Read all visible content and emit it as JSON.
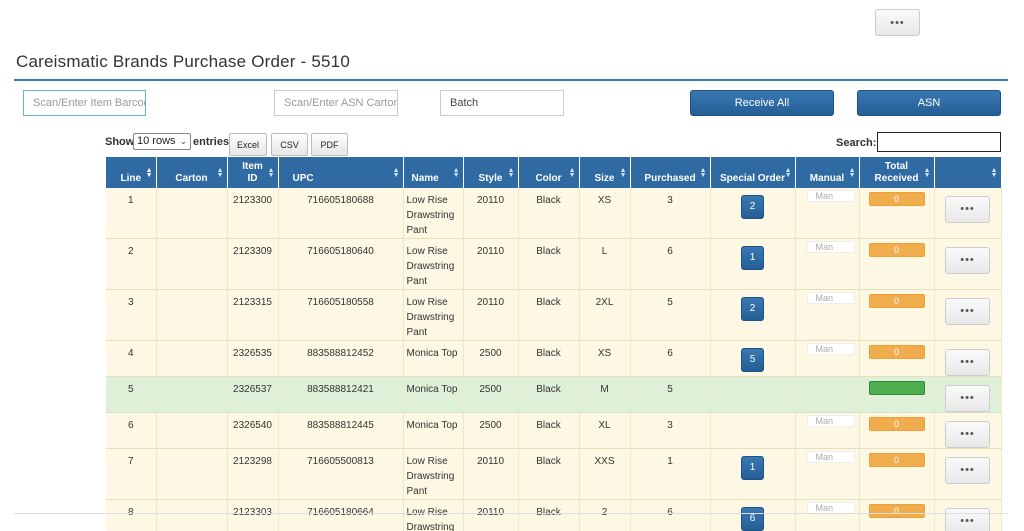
{
  "header": {
    "more_label": "•••"
  },
  "page_title": "Careismatic Brands Purchase Order - 5510",
  "inputs": {
    "item_barcode_placeholder": "Scan/Enter Item Barcode",
    "asn_carton_placeholder": "Scan/Enter ASN Carton",
    "batch_value": "Batch"
  },
  "actions": {
    "receive_all": "Receive All",
    "asn": "ASN"
  },
  "table_controls": {
    "show": "Show",
    "rows_selected": "10 rows",
    "entries": "entries",
    "export_buttons": [
      "Excel",
      "CSV",
      "PDF"
    ],
    "search_label": "Search:",
    "search_value": ""
  },
  "columns": [
    "Line",
    "Carton",
    "Item ID",
    "UPC",
    "Name",
    "Style",
    "Color",
    "Size",
    "Purchased",
    "Special Order",
    "Manual",
    "Total Received",
    ""
  ],
  "sorted_column": "Line",
  "rows": [
    {
      "line": "1",
      "carton": "",
      "item_id": "2123300",
      "upc": "716605180688",
      "name": "Low Rise Drawstring Pant",
      "style": "20110",
      "color": "Black",
      "size": "XS",
      "purchased": "3",
      "special_order": "2",
      "manual": "Man",
      "total_received": "0",
      "received": false,
      "more": "•••"
    },
    {
      "line": "2",
      "carton": "",
      "item_id": "2123309",
      "upc": "716605180640",
      "name": "Low Rise Drawstring Pant",
      "style": "20110",
      "color": "Black",
      "size": "L",
      "purchased": "6",
      "special_order": "1",
      "manual": "Man",
      "total_received": "0",
      "received": false,
      "more": "•••"
    },
    {
      "line": "3",
      "carton": "",
      "item_id": "2123315",
      "upc": "716605180558",
      "name": "Low Rise Drawstring Pant",
      "style": "20110",
      "color": "Black",
      "size": "2XL",
      "purchased": "5",
      "special_order": "2",
      "manual": "Man",
      "total_received": "0",
      "received": false,
      "more": "•••"
    },
    {
      "line": "4",
      "carton": "",
      "item_id": "2326535",
      "upc": "883588812452",
      "name": "Monica Top",
      "style": "2500",
      "color": "Black",
      "size": "XS",
      "purchased": "6",
      "special_order": "5",
      "manual": "Man",
      "total_received": "0",
      "received": false,
      "more": "•••"
    },
    {
      "line": "5",
      "carton": "",
      "item_id": "2326537",
      "upc": "883588812421",
      "name": "Monica Top",
      "style": "2500",
      "color": "Black",
      "size": "M",
      "purchased": "5",
      "special_order": "",
      "manual": "",
      "total_received": "",
      "received": true,
      "more": "•••"
    },
    {
      "line": "6",
      "carton": "",
      "item_id": "2326540",
      "upc": "883588812445",
      "name": "Monica Top",
      "style": "2500",
      "color": "Black",
      "size": "XL",
      "purchased": "3",
      "special_order": "",
      "manual": "Man",
      "total_received": "0",
      "received": false,
      "more": "•••"
    },
    {
      "line": "7",
      "carton": "",
      "item_id": "2123298",
      "upc": "716605500813",
      "name": "Low Rise Drawstring Pant",
      "style": "20110",
      "color": "Black",
      "size": "XXS",
      "purchased": "1",
      "special_order": "1",
      "manual": "Man",
      "total_received": "0",
      "received": false,
      "more": "•••"
    },
    {
      "line": "8",
      "carton": "",
      "item_id": "2123303",
      "upc": "716605180664",
      "name": "Low Rise Drawstring Pant",
      "style": "20110",
      "color": "Black",
      "size": "2",
      "purchased": "6",
      "special_order": "6",
      "manual": "Man",
      "total_received": "0",
      "received": false,
      "more": "•••"
    }
  ],
  "colors": {
    "accent": "#2f6aa2",
    "row_pending": "#fcf8e3",
    "row_received": "#dff0d8",
    "badge_pending": "#f0ad4e",
    "badge_received": "#4cae4c"
  }
}
